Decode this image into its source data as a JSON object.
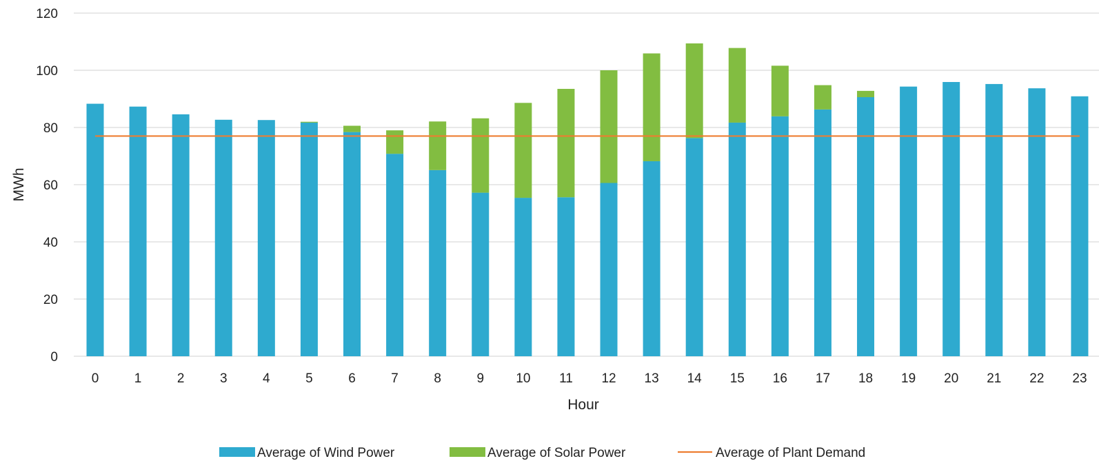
{
  "chart_data": {
    "type": "bar",
    "stacked": true,
    "title": "",
    "xlabel": "Hour",
    "ylabel": "MWh",
    "ylim": [
      0,
      120
    ],
    "yticks": [
      0,
      20,
      40,
      60,
      80,
      100,
      120
    ],
    "grid": true,
    "legend_position": "bottom",
    "categories": [
      "0",
      "1",
      "2",
      "3",
      "4",
      "5",
      "6",
      "7",
      "8",
      "9",
      "10",
      "11",
      "12",
      "13",
      "14",
      "15",
      "16",
      "17",
      "18",
      "19",
      "20",
      "21",
      "22",
      "23"
    ],
    "series": [
      {
        "name": "Average of Wind Power",
        "kind": "bar",
        "color": "#2eaacf",
        "values": [
          88.3,
          87.3,
          84.6,
          82.7,
          82.6,
          81.7,
          78.4,
          70.8,
          65.1,
          57.2,
          55.4,
          55.6,
          60.6,
          68.2,
          76.3,
          81.7,
          83.9,
          86.3,
          90.6,
          94.3,
          95.9,
          95.2,
          93.7,
          90.9
        ]
      },
      {
        "name": "Average of Solar Power",
        "kind": "bar",
        "color": "#82bd41",
        "values": [
          0,
          0,
          0,
          0,
          0,
          0.3,
          2.2,
          8.2,
          17.0,
          26.0,
          33.2,
          37.9,
          39.4,
          37.7,
          33.1,
          26.1,
          17.7,
          8.5,
          2.2,
          0,
          0,
          0,
          0,
          0
        ]
      },
      {
        "name": "Average of Plant Demand",
        "kind": "line",
        "color": "#ed7d31",
        "values": [
          77,
          77,
          77,
          77,
          77,
          77,
          77,
          77,
          77,
          77,
          77,
          77,
          77,
          77,
          77,
          77,
          77,
          77,
          77,
          77,
          77,
          77,
          77,
          77
        ]
      }
    ]
  }
}
